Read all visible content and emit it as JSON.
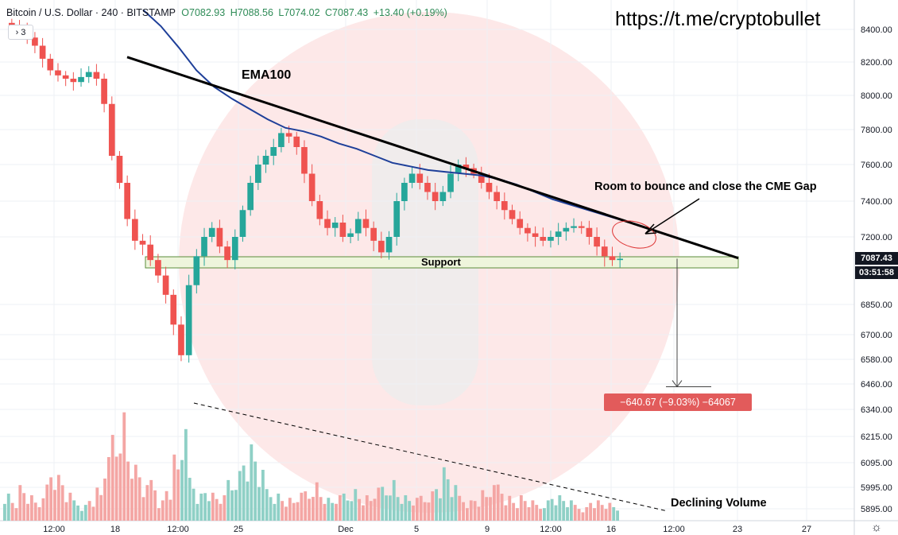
{
  "header": {
    "symbol": "Bitcoin / U.S. Dollar · 240 · BITSTAMP",
    "open": "O7082.93",
    "high": "H7088.56",
    "low": "L7074.02",
    "close": "C7087.43",
    "change": "+13.40 (+0.19%)",
    "collapse_label": "› 3"
  },
  "watermark_link": "https://t.me/cryptobullet",
  "annotations": {
    "ema": "EMA100",
    "room": "Room to bounce and close the CME Gap",
    "support": "Support",
    "declining": "Declining Volume",
    "measure": "−640.67 (−9.03%) −64067"
  },
  "price_tags": {
    "last": "7087.43",
    "countdown": "03:51:58"
  },
  "colors": {
    "up": "#26a69a",
    "down": "#ef5350",
    "vol_up": "#8fd0c6",
    "vol_down": "#f4a6a4",
    "ema": "#1e3f99",
    "support_fill": "#eef5dc",
    "measure_box": "#e25b5b"
  },
  "chart_data": {
    "type": "candlestick",
    "y_ticks": [
      "8400.00",
      "8200.00",
      "8000.00",
      "7800.00",
      "7600.00",
      "7400.00",
      "7200.00",
      "6850.00",
      "6700.00",
      "6580.00",
      "6460.00",
      "6340.00",
      "6215.00",
      "6095.00",
      "5995.00",
      "5895.00"
    ],
    "x_ticks": [
      "12:00",
      "18",
      "12:00",
      "25",
      "Dec",
      "5",
      "9",
      "12:00",
      "16",
      "12:00",
      "23",
      "27"
    ],
    "support_level": 7087.43,
    "target_level": 6446.76,
    "trendline": {
      "from": 8230,
      "to": 7090
    },
    "ema100": [
      8520,
      8420,
      8290,
      8150,
      8050,
      7980,
      7920,
      7860,
      7810,
      7790,
      7760,
      7720,
      7690,
      7650,
      7610,
      7590,
      7570,
      7560,
      7550,
      7540,
      7520,
      7490,
      7450,
      7410,
      7380,
      7350,
      7320,
      7290
    ],
    "candles_close": [
      8420,
      8390,
      8350,
      8300,
      8220,
      8150,
      8120,
      8100,
      8080,
      8110,
      8140,
      8100,
      7950,
      7650,
      7500,
      7300,
      7180,
      7160,
      7080,
      7000,
      6900,
      6750,
      6600,
      6950,
      7100,
      7200,
      7250,
      7150,
      7080,
      7200,
      7350,
      7500,
      7600,
      7650,
      7700,
      7780,
      7760,
      7700,
      7550,
      7400,
      7300,
      7250,
      7280,
      7200,
      7220,
      7300,
      7250,
      7180,
      7120,
      7200,
      7400,
      7500,
      7550,
      7500,
      7450,
      7400,
      7450,
      7550,
      7600,
      7580,
      7550,
      7500,
      7450,
      7400,
      7350,
      7300,
      7250,
      7220,
      7200,
      7180,
      7200,
      7230,
      7250,
      7260,
      7250,
      7200,
      7150,
      7100,
      7080,
      7087
    ],
    "volume_close": [
      12,
      9,
      14,
      10,
      8,
      16,
      22,
      18,
      11,
      9,
      7,
      10,
      13,
      25,
      38,
      48,
      30,
      22,
      14,
      18,
      9,
      15,
      26,
      36,
      19,
      12,
      14,
      11,
      10,
      18,
      22,
      28,
      30,
      20,
      14,
      12,
      10,
      9,
      11,
      13,
      17,
      12,
      9,
      10,
      12,
      14,
      11,
      10,
      13,
      15,
      18,
      12,
      10,
      9,
      11,
      13,
      16,
      21,
      14,
      11,
      9,
      10,
      12,
      14,
      16,
      11,
      9,
      10,
      8,
      7,
      9,
      11,
      10,
      8,
      7,
      6,
      9,
      8,
      7,
      6
    ]
  }
}
